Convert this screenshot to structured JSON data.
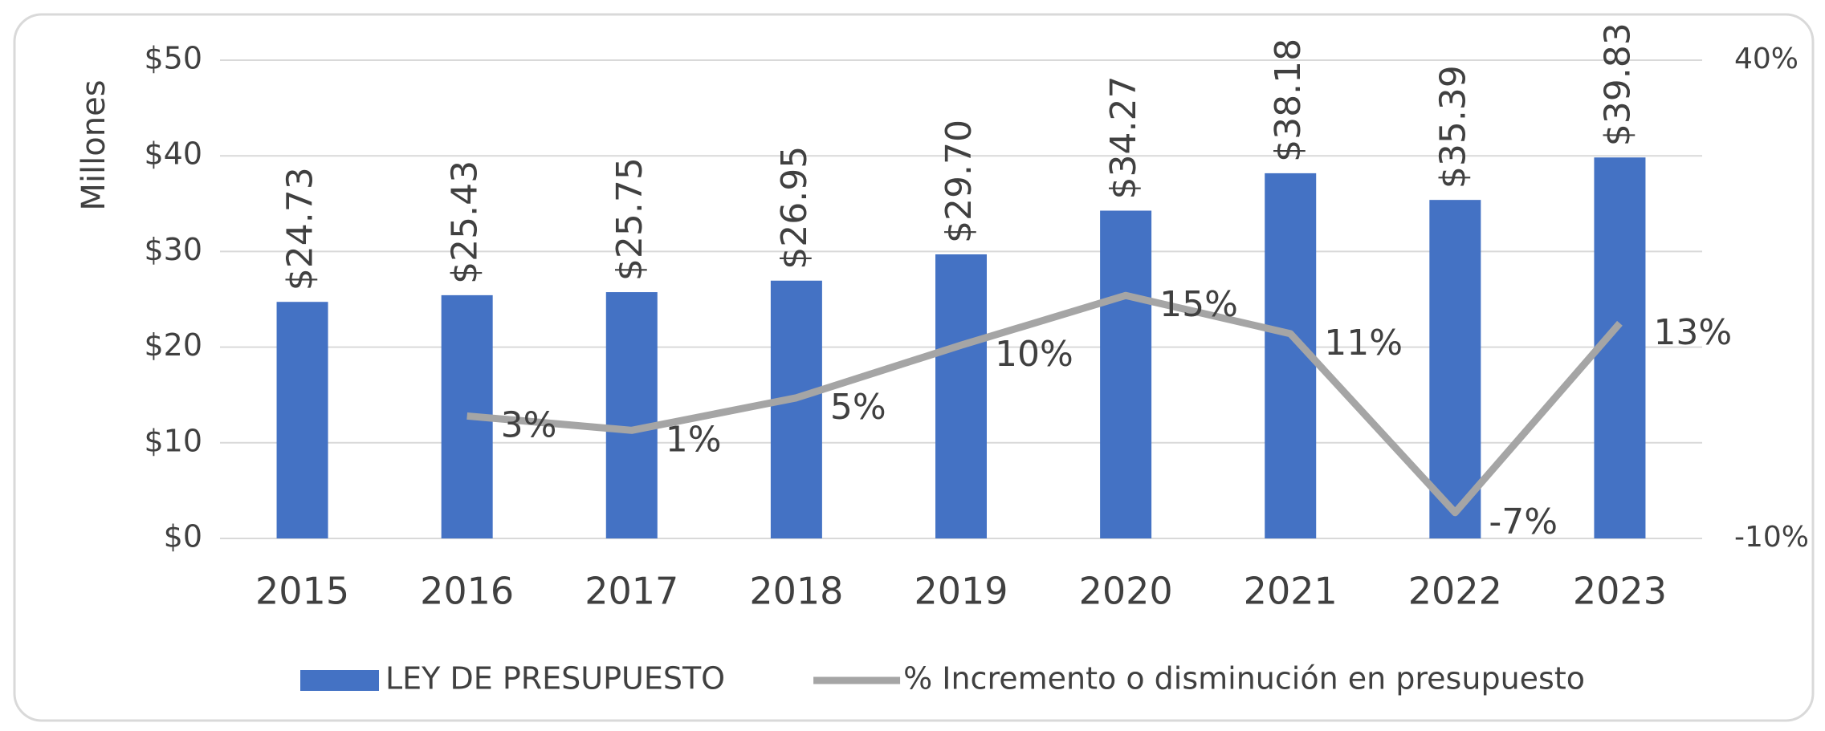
{
  "chart_data": {
    "type": "bar",
    "ylabel": "Millones",
    "categories": [
      "2015",
      "2016",
      "2017",
      "2018",
      "2019",
      "2020",
      "2021",
      "2022",
      "2023"
    ],
    "series": [
      {
        "name": "LEY DE PRESUPUESTO",
        "type": "bar",
        "color": "#4472c4",
        "values": [
          24.73,
          25.43,
          25.75,
          26.95,
          29.7,
          34.27,
          38.18,
          35.39,
          39.83
        ],
        "value_labels": [
          "$24.73",
          "$25.43",
          "$25.75",
          "$26.95",
          "$29.70",
          "$34.27",
          "$38.18",
          "$35.39",
          "$39.83"
        ]
      },
      {
        "name": "% Incremento o disminución en presupuesto",
        "type": "line",
        "axis": "y2",
        "color": "#a5a5a5",
        "values": [
          null,
          2.8,
          1.3,
          4.7,
          10.2,
          15.4,
          11.4,
          -7.3,
          12.5
        ],
        "value_labels": [
          null,
          "3%",
          "1%",
          "5%",
          "10%",
          "15%",
          "11%",
          "-7%",
          "13%"
        ]
      }
    ],
    "ylim": [
      0,
      50
    ],
    "yticks": [
      {
        "value": 0,
        "label": "$0"
      },
      {
        "value": 10,
        "label": "$10"
      },
      {
        "value": 20,
        "label": "$20"
      },
      {
        "value": 30,
        "label": "$30"
      },
      {
        "value": 40,
        "label": "$40"
      },
      {
        "value": 50,
        "label": "$50"
      }
    ],
    "y2lim": [
      -10,
      40
    ],
    "y2ticks": [
      {
        "value": -10,
        "label": "-10%"
      },
      {
        "value": 40,
        "label": "40%"
      }
    ],
    "grid": true,
    "legend": "bottom"
  }
}
